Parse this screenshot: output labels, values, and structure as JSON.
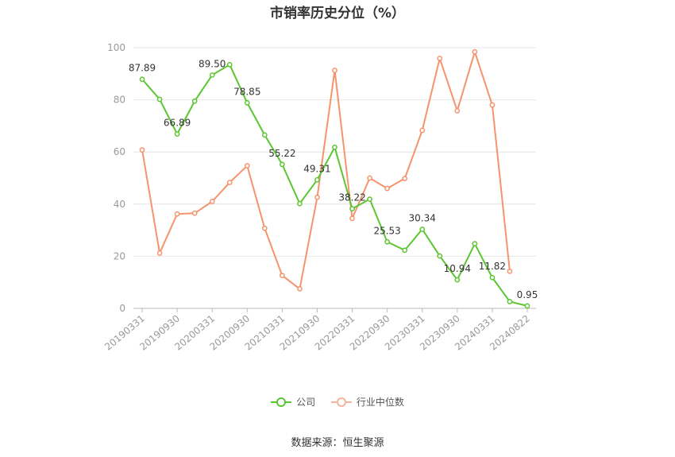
{
  "chart_data": {
    "type": "line",
    "title": "市销率历史分位（%）",
    "x": [
      "20190331",
      "20190630",
      "20190930",
      "20191231",
      "20200331",
      "20200630",
      "20200930",
      "20201231",
      "20210331",
      "20210630",
      "20210930",
      "20211231",
      "20220331",
      "20220630",
      "20220930",
      "20221231",
      "20230331",
      "20230630",
      "20230930",
      "20231231",
      "20240331",
      "20240630",
      "20240822"
    ],
    "x_tick_labels": [
      "20190331",
      "20190930",
      "20200331",
      "20200930",
      "20210331",
      "20210930",
      "20220331",
      "20220930",
      "20230331",
      "20230930",
      "20240331",
      "20240822"
    ],
    "ylim": [
      0,
      100
    ],
    "y_ticks": [
      0,
      20,
      40,
      60,
      80,
      100
    ],
    "grid": true,
    "legend_position": "bottom",
    "series": [
      {
        "name": "公司",
        "color": "#5cc632",
        "values": [
          87.89,
          80.2,
          66.89,
          79.5,
          89.5,
          93.5,
          78.85,
          66.5,
          55.22,
          40.2,
          49.31,
          61.8,
          38.22,
          41.9,
          25.53,
          22.3,
          30.34,
          20.1,
          10.94,
          24.8,
          11.82,
          2.6,
          0.95
        ],
        "labels": {
          "0": "87.89",
          "2": "66.89",
          "4": "89.50",
          "6": "78.85",
          "8": "55.22",
          "10": "49.31",
          "12": "38.22",
          "14": "25.53",
          "16": "30.34",
          "18": "10.94",
          "20": "11.82",
          "22": "0.95"
        }
      },
      {
        "name": "行业中位数",
        "color": "#f5936c",
        "values": [
          60.8,
          21.2,
          36.2,
          36.5,
          41.0,
          48.3,
          54.7,
          30.7,
          12.6,
          7.5,
          42.6,
          91.3,
          34.5,
          50.0,
          46.0,
          49.8,
          68.3,
          95.9,
          75.8,
          98.4,
          78.0,
          14.2,
          null
        ]
      }
    ]
  },
  "legend": {
    "company": "公司",
    "industry": "行业中位数"
  },
  "source": "数据来源：恒生聚源"
}
